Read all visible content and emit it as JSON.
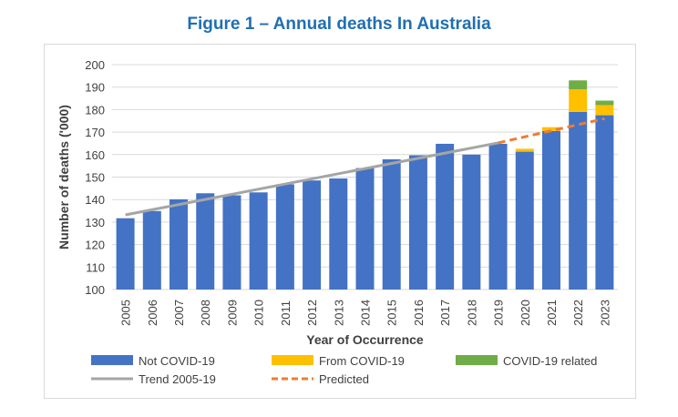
{
  "chart_data": {
    "type": "bar",
    "title": "Figure 1 – Annual deaths In Australia",
    "xlabel": "Year of Occurrence",
    "ylabel": "Number of deaths ('000)",
    "ylim": [
      100,
      200
    ],
    "yticks": [
      100,
      110,
      120,
      130,
      140,
      150,
      160,
      170,
      180,
      190,
      200
    ],
    "grid": true,
    "legend_position": "bottom",
    "categories": [
      "2005",
      "2006",
      "2007",
      "2008",
      "2009",
      "2010",
      "2011",
      "2012",
      "2013",
      "2014",
      "2015",
      "2016",
      "2017",
      "2018",
      "2019",
      "2020",
      "2021",
      "2022",
      "2023"
    ],
    "series": [
      {
        "name": "Not COVID-19",
        "color": "#4472c4",
        "values": [
          131.7,
          134.9,
          140.1,
          142.8,
          141.9,
          143.2,
          146.8,
          148.5,
          149.4,
          154.0,
          157.9,
          159.7,
          164.8,
          160.0,
          164.8,
          161.3,
          170.5,
          179.0,
          177.5
        ]
      },
      {
        "name": "From COVID-19",
        "color": "#ffc000",
        "values": [
          0,
          0,
          0,
          0,
          0,
          0,
          0,
          0,
          0,
          0,
          0,
          0,
          0,
          0,
          0,
          1.3,
          1.7,
          10.0,
          4.5
        ]
      },
      {
        "name": "COVID-19 related",
        "color": "#70ad47",
        "values": [
          0,
          0,
          0,
          0,
          0,
          0,
          0,
          0,
          0,
          0,
          0,
          0,
          0,
          0,
          0,
          0,
          0,
          4.0,
          2.0
        ]
      }
    ],
    "lines": [
      {
        "name": "Trend 2005-19",
        "color": "#a5a5a5",
        "style": "solid",
        "x": [
          "2005",
          "2019"
        ],
        "y": [
          133.2,
          165.2
        ]
      },
      {
        "name": "Predicted",
        "color": "#ed7d31",
        "style": "dashed",
        "x": [
          "2019",
          "2023"
        ],
        "y": [
          165.2,
          176.0
        ]
      }
    ]
  }
}
